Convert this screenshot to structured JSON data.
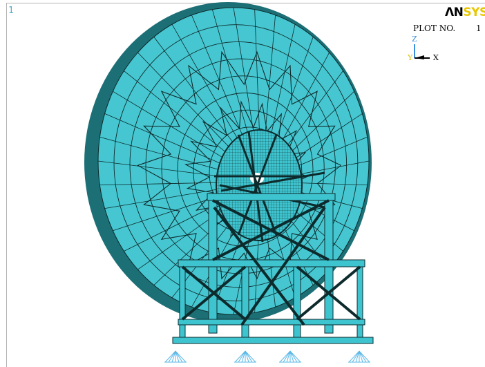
{
  "window_number": "1",
  "logo": {
    "prefix": "ΛN",
    "suffix": "SYS"
  },
  "plot": {
    "label": "PLOT NO.",
    "value": "1"
  },
  "triad": {
    "z": "Z",
    "y": "Y",
    "x": "X"
  },
  "colors": {
    "mesh_fill": "#3ec4cf",
    "mesh_edge": "#0d2a2c",
    "constraint": "#5ab8e8",
    "triad_z": "#3a8fe0",
    "triad_y": "#d8c400",
    "logo_accent": "#e8c600"
  }
}
